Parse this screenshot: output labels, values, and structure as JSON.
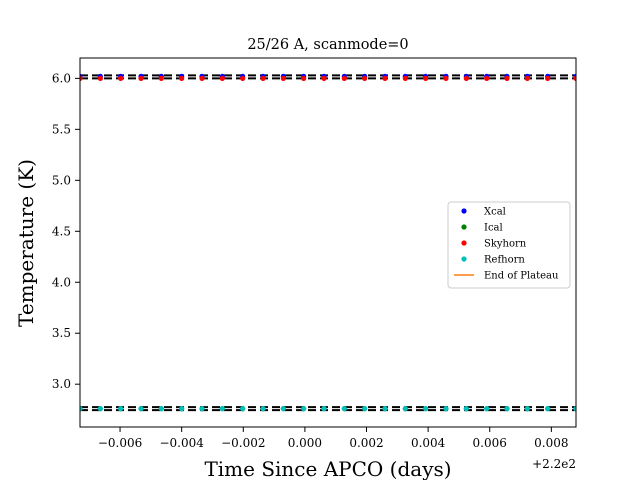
{
  "chart_data": {
    "type": "scatter",
    "title": "25/26 A, scanmode=0",
    "xlabel": "Time Since APCO (days)",
    "ylabel": "Temperature (K)",
    "x_offset_label": "+2.2e2",
    "xlim": [
      -0.0073,
      0.0088
    ],
    "ylim": [
      2.58,
      6.2
    ],
    "xticks": [
      -0.006,
      -0.004,
      -0.002,
      0.0,
      0.002,
      0.004,
      0.006,
      0.008
    ],
    "xtick_labels": [
      "−0.006",
      "−0.004",
      "−0.002",
      "0.000",
      "0.002",
      "0.004",
      "0.006",
      "0.008"
    ],
    "yticks": [
      3.0,
      3.5,
      4.0,
      4.5,
      5.0,
      5.5,
      6.0
    ],
    "ytick_labels": [
      "3.0",
      "3.5",
      "4.0",
      "4.5",
      "5.0",
      "5.5",
      "6.0"
    ],
    "grid": false,
    "legend_position": "center-right",
    "x": [
      -0.0073,
      -0.00664,
      -0.00598,
      -0.00532,
      -0.00466,
      -0.004,
      -0.00334,
      -0.00268,
      -0.00202,
      -0.00136,
      -0.0007,
      -4e-05,
      0.00062,
      0.00128,
      0.00194,
      0.0026,
      0.00326,
      0.00392,
      0.00458,
      0.00524,
      0.0059,
      0.00656,
      0.00722,
      0.00788,
      0.0088
    ],
    "series": [
      {
        "name": "Xcal",
        "kind": "points",
        "color": "#0000ff",
        "y_const": 6.02
      },
      {
        "name": "Ical",
        "kind": "points",
        "color": "#008000",
        "y_const": 2.76
      },
      {
        "name": "Skyhorn",
        "kind": "points",
        "color": "#ff0000",
        "y_const": 6.0
      },
      {
        "name": "Refhorn",
        "kind": "points",
        "color": "#00bfbf",
        "y_const": 2.76
      },
      {
        "name": "End of Plateau",
        "kind": "line",
        "color": "#ff7f0e"
      }
    ],
    "hlines": [
      6.03,
      6.0,
      2.775,
      2.745
    ]
  }
}
